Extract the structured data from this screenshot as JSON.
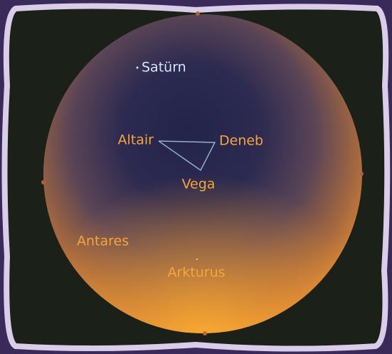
{
  "sky_map": {
    "objects": [
      {
        "label": "Satürn"
      },
      {
        "label": "Altair"
      },
      {
        "label": "Deneb"
      },
      {
        "label": "Vega"
      },
      {
        "label": "Antares"
      },
      {
        "label": "Arkturus"
      }
    ]
  }
}
